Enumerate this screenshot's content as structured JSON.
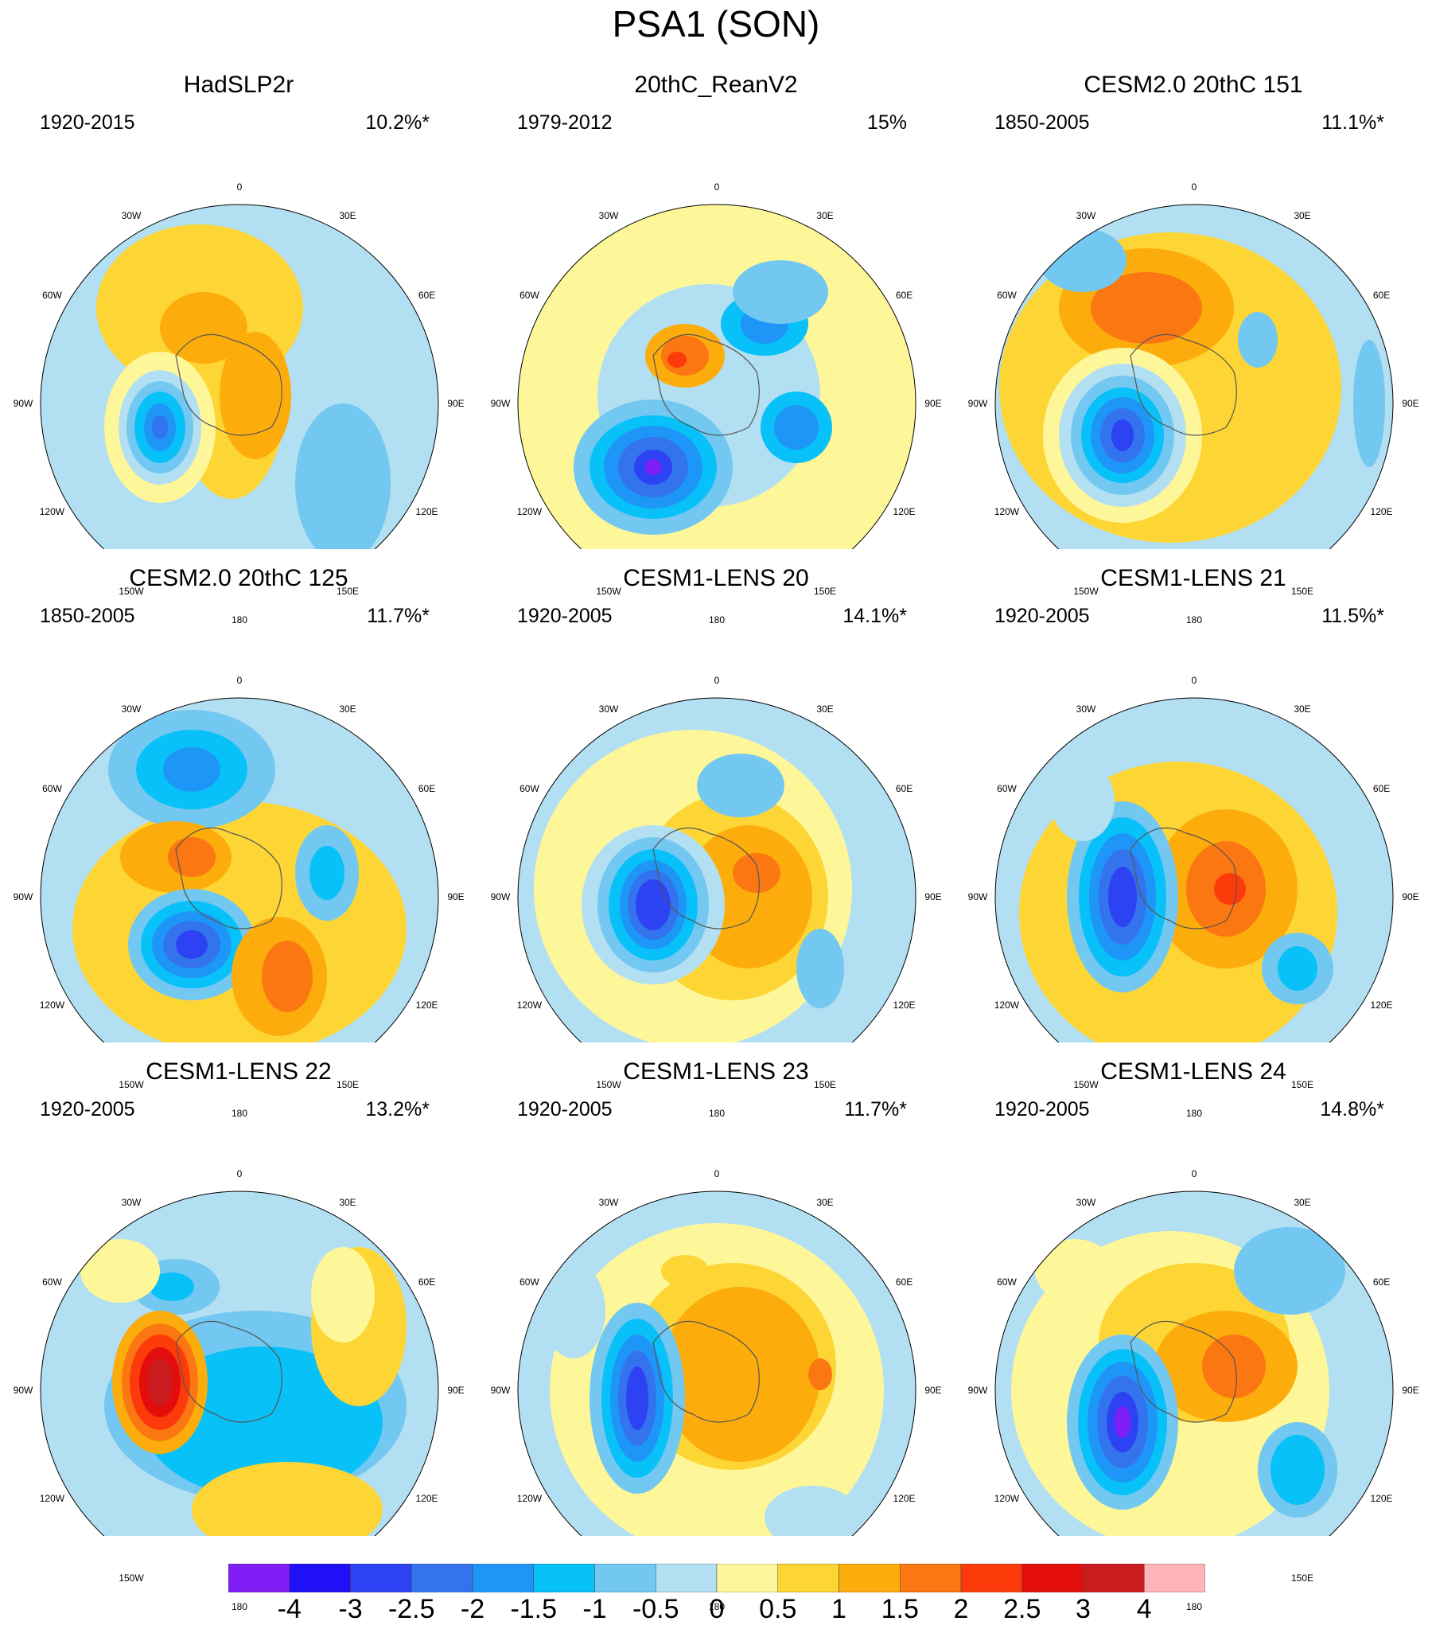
{
  "chart_data": {
    "title": "PSA1 (SON)",
    "type": "polar-stereographic contour maps (Southern Hemisphere)",
    "longitude_labels": [
      "0",
      "30E",
      "60E",
      "90E",
      "120E",
      "150E",
      "180",
      "150W",
      "120W",
      "90W",
      "60W",
      "30W"
    ],
    "colorbar": {
      "tick_labels": [
        "-4",
        "-3",
        "-2.5",
        "-2",
        "-1.5",
        "-1",
        "-0.5",
        "0",
        "0.5",
        "1",
        "1.5",
        "2",
        "2.5",
        "3",
        "4"
      ],
      "colors": [
        "#7f1ef5",
        "#1f10f5",
        "#2d42f2",
        "#3373ee",
        "#1e96f7",
        "#08c1f8",
        "#72c8f0",
        "#b2dff2",
        "#fef79a",
        "#fdd635",
        "#fcad0c",
        "#fb7711",
        "#fd3a0a",
        "#e30e0c",
        "#ca1b1e",
        "#fdb5b9"
      ]
    },
    "panels": [
      {
        "title": "HadSLP2r",
        "period": "1920-2015",
        "variance": "10.2%*"
      },
      {
        "title": "20thC_ReanV2",
        "period": "1979-2012",
        "variance": "15%"
      },
      {
        "title": "CESM2.0 20thC 151",
        "period": "1850-2005",
        "variance": "11.1%*"
      },
      {
        "title": "CESM2.0 20thC 125",
        "period": "1850-2005",
        "variance": "11.7%*"
      },
      {
        "title": "CESM1-LENS 20",
        "period": "1920-2005",
        "variance": "14.1%*"
      },
      {
        "title": "CESM1-LENS 21",
        "period": "1920-2005",
        "variance": "11.5%*"
      },
      {
        "title": "CESM1-LENS 22",
        "period": "1920-2005",
        "variance": "13.2%*"
      },
      {
        "title": "CESM1-LENS 23",
        "period": "1920-2005",
        "variance": "11.7%*"
      },
      {
        "title": "CESM1-LENS 24",
        "period": "1920-2005",
        "variance": "14.8%*"
      }
    ]
  }
}
